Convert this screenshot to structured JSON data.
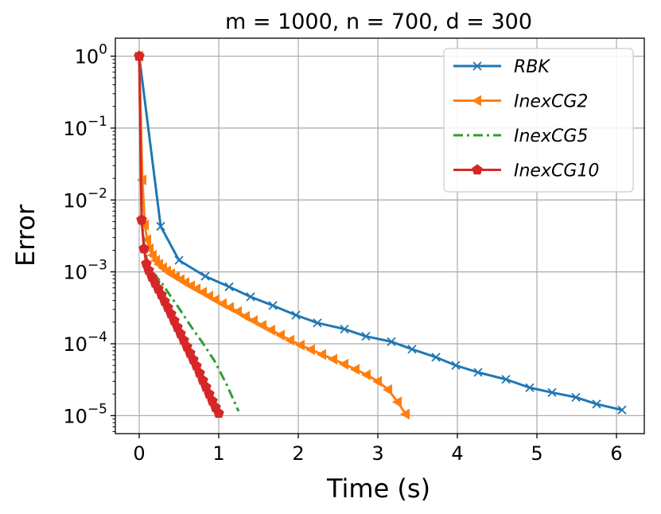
{
  "chart_data": {
    "type": "line",
    "title": "m = 1000, n = 700, d = 300",
    "xlabel": "Time (s)",
    "ylabel": "Error",
    "xlim": [
      -0.3,
      6.35
    ],
    "ylim_log10": [
      -5.25,
      0.25
    ],
    "yscale": "log",
    "grid": true,
    "legend_position": "top-right",
    "x_ticks": [
      0,
      1,
      2,
      3,
      4,
      5,
      6
    ],
    "x_tick_labels": [
      "0",
      "1",
      "2",
      "3",
      "4",
      "5",
      "6"
    ],
    "y_ticks_log10": [
      0,
      -1,
      -2,
      -3,
      -4,
      -5
    ],
    "y_tick_labels": [
      {
        "base": "10",
        "exp": "0"
      },
      {
        "base": "10",
        "exp": "−1"
      },
      {
        "base": "10",
        "exp": "−2"
      },
      {
        "base": "10",
        "exp": "−3"
      },
      {
        "base": "10",
        "exp": "−4"
      },
      {
        "base": "10",
        "exp": "−5"
      }
    ],
    "series": [
      {
        "name": "RBK",
        "color": "#1f77b4",
        "marker": "x",
        "dash": "solid",
        "points": [
          [
            0,
            1
          ],
          [
            0.27,
            0.0043
          ],
          [
            0.5,
            0.00145
          ],
          [
            0.83,
            0.00087
          ],
          [
            1.13,
            0.00062
          ],
          [
            1.4,
            0.00045
          ],
          [
            1.68,
            0.00034
          ],
          [
            1.97,
            0.00025
          ],
          [
            2.24,
            0.000195
          ],
          [
            2.58,
            0.00016
          ],
          [
            2.85,
            0.000127
          ],
          [
            3.17,
            0.000107
          ],
          [
            3.43,
            8.4e-05
          ],
          [
            3.73,
            6.5e-05
          ],
          [
            3.98,
            5e-05
          ],
          [
            4.26,
            4e-05
          ],
          [
            4.61,
            3.2e-05
          ],
          [
            4.91,
            2.45e-05
          ],
          [
            5.19,
            2.1e-05
          ],
          [
            5.49,
            1.8e-05
          ],
          [
            5.75,
            1.45e-05
          ],
          [
            6.07,
            1.2e-05
          ]
        ]
      },
      {
        "name": "InexCG2",
        "color": "#ff7f0e",
        "marker": "triangle-left",
        "dash": "solid",
        "points": [
          [
            0,
            1
          ],
          [
            0.04,
            0.019
          ],
          [
            0.07,
            0.0045
          ],
          [
            0.1,
            0.0028
          ],
          [
            0.13,
            0.0021
          ],
          [
            0.17,
            0.0017
          ],
          [
            0.21,
            0.00145
          ],
          [
            0.25,
            0.00128
          ],
          [
            0.3,
            0.00114
          ],
          [
            0.35,
            0.00103
          ],
          [
            0.4,
            0.00094
          ],
          [
            0.46,
            0.00086
          ],
          [
            0.52,
            0.00078
          ],
          [
            0.58,
            0.00071
          ],
          [
            0.65,
            0.00064
          ],
          [
            0.72,
            0.00058
          ],
          [
            0.8,
            0.00052
          ],
          [
            0.88,
            0.00046
          ],
          [
            0.96,
            0.00041
          ],
          [
            1.05,
            0.00036
          ],
          [
            1.14,
            0.00032
          ],
          [
            1.24,
            0.00028
          ],
          [
            1.34,
            0.00024
          ],
          [
            1.44,
            0.00021
          ],
          [
            1.55,
            0.00018
          ],
          [
            1.66,
            0.000155
          ],
          [
            1.78,
            0.000132
          ],
          [
            1.9,
            0.000112
          ],
          [
            2.03,
            9.6e-05
          ],
          [
            2.16,
            8.3e-05
          ],
          [
            2.3,
            7.1e-05
          ],
          [
            2.44,
            6.1e-05
          ],
          [
            2.58,
            5.2e-05
          ],
          [
            2.72,
            4.4e-05
          ],
          [
            2.86,
            3.7e-05
          ],
          [
            3.0,
            3e-05
          ],
          [
            3.13,
            2.3e-05
          ],
          [
            3.25,
            1.55e-05
          ],
          [
            3.35,
            1.05e-05
          ]
        ]
      },
      {
        "name": "InexCG5",
        "color": "#2ca02c",
        "marker": "none",
        "dash": "dashdot",
        "points": [
          [
            0,
            1
          ],
          [
            0.03,
            0.006
          ],
          [
            0.06,
            0.0024
          ],
          [
            0.1,
            0.0014
          ],
          [
            0.15,
            0.00105
          ],
          [
            0.22,
            0.00085
          ],
          [
            0.3,
            0.00066
          ],
          [
            0.4,
            0.00045
          ],
          [
            0.52,
            0.00029
          ],
          [
            0.65,
            0.000175
          ],
          [
            0.8,
            0.000102
          ],
          [
            0.95,
            5.7e-05
          ],
          [
            1.1,
            2.7e-05
          ],
          [
            1.25,
            1.15e-05
          ]
        ]
      },
      {
        "name": "InexCG10",
        "color": "#d62728",
        "marker": "pentagon",
        "dash": "solid",
        "points": [
          [
            0,
            1
          ],
          [
            0.03,
            0.0053
          ],
          [
            0.06,
            0.0021
          ],
          [
            0.09,
            0.0013
          ],
          [
            0.12,
            0.00105
          ],
          [
            0.16,
            0.00085
          ],
          [
            0.2,
            0.0007
          ],
          [
            0.24,
            0.00058
          ],
          [
            0.28,
            0.00048
          ],
          [
            0.32,
            0.00039
          ],
          [
            0.36,
            0.00032
          ],
          [
            0.4,
            0.00026
          ],
          [
            0.44,
            0.00021
          ],
          [
            0.48,
            0.00017
          ],
          [
            0.52,
            0.000138
          ],
          [
            0.56,
            0.000112
          ],
          [
            0.6,
            9.1e-05
          ],
          [
            0.64,
            7.4e-05
          ],
          [
            0.68,
            6e-05
          ],
          [
            0.72,
            4.9e-05
          ],
          [
            0.76,
            3.9e-05
          ],
          [
            0.8,
            3.1e-05
          ],
          [
            0.84,
            2.5e-05
          ],
          [
            0.88,
            2e-05
          ],
          [
            0.92,
            1.6e-05
          ],
          [
            0.96,
            1.3e-05
          ],
          [
            1.0,
            1.08e-05
          ]
        ]
      }
    ]
  }
}
